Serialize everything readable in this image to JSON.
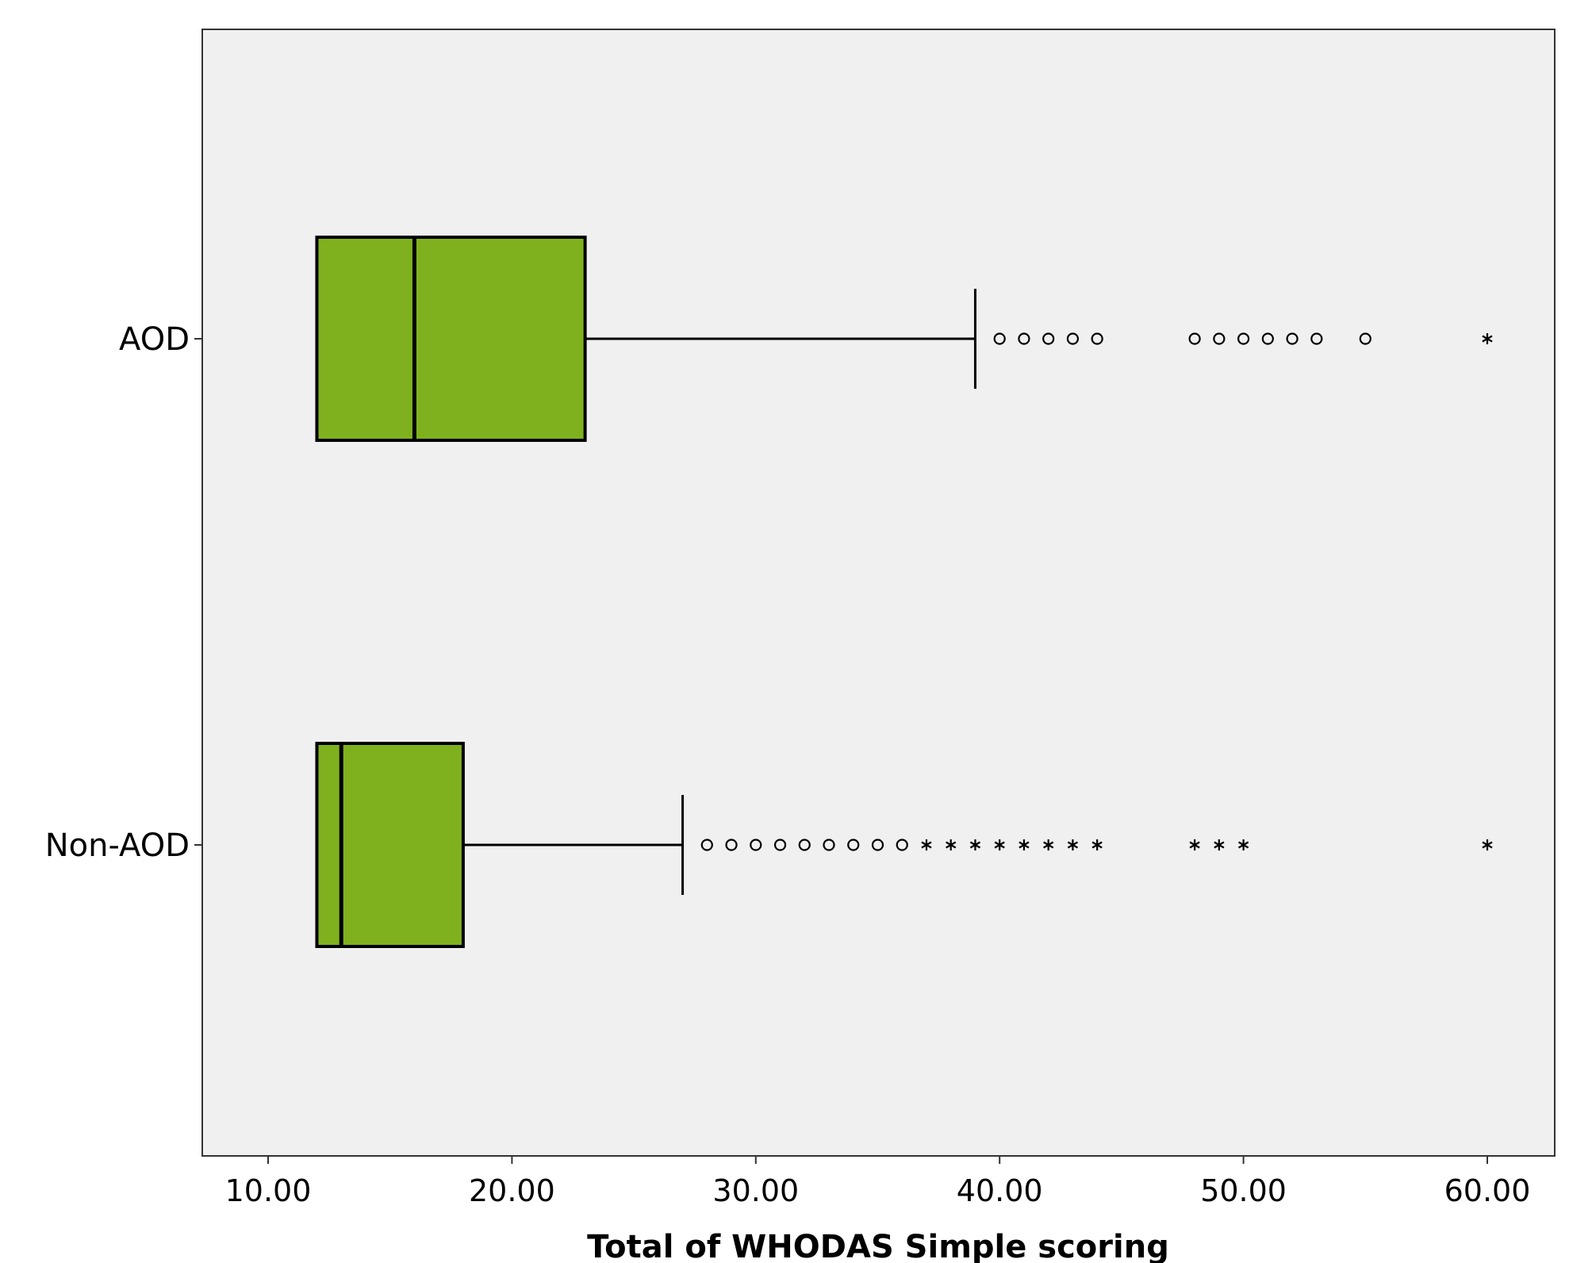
{
  "chart_data": {
    "type": "boxplot",
    "orientation": "horizontal",
    "xlabel": "Total of WHODAS Simple scoring",
    "xlim": [
      7.3,
      63.3
    ],
    "xticks": [
      10,
      20,
      30,
      40,
      50,
      60
    ],
    "xtick_labels": [
      "10.00",
      "20.00",
      "30.00",
      "40.00",
      "50.00",
      "60.00"
    ],
    "categories": [
      "AOD",
      "Non-AOD"
    ],
    "boxes": [
      {
        "label": "AOD",
        "whisker_low": 12,
        "q1": 12,
        "median": 16,
        "q3": 23,
        "whisker_high": 39,
        "outliers": [
          40,
          41,
          42,
          43,
          44,
          48,
          49,
          50,
          51,
          52,
          53,
          55
        ],
        "extremes": [
          60
        ]
      },
      {
        "label": "Non-AOD",
        "whisker_low": 12,
        "q1": 12,
        "median": 13,
        "q3": 18,
        "whisker_high": 27,
        "outliers": [
          28,
          29,
          30,
          31,
          32,
          33,
          34,
          35,
          36
        ],
        "extremes": [
          37,
          38,
          39,
          40,
          41,
          42,
          43,
          44,
          48,
          49,
          50,
          60
        ]
      }
    ],
    "colors": {
      "box_fill": "#7fb11f",
      "box_stroke": "#000000",
      "plot_background": "#f0f0f0"
    },
    "grid": false,
    "legend": "none"
  }
}
